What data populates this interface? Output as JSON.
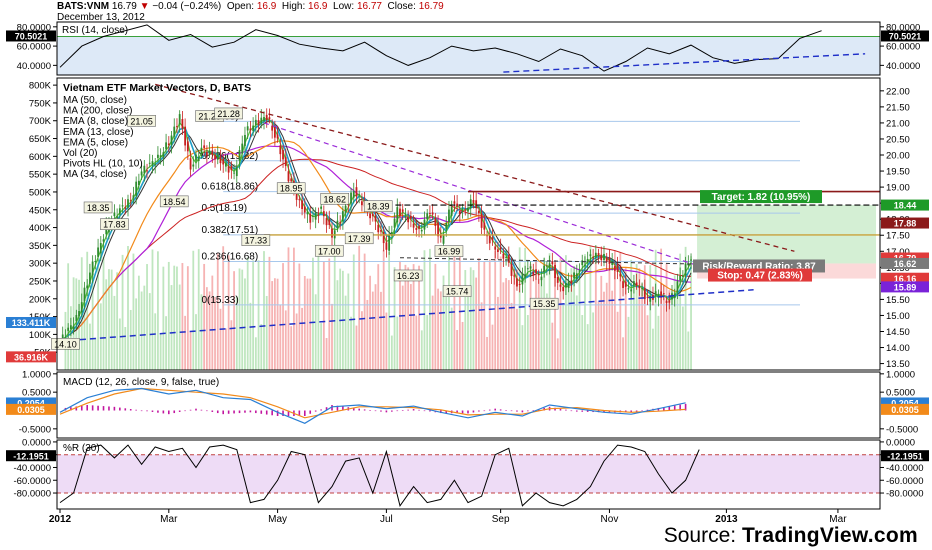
{
  "header": {
    "symbol": "BATS:VNM",
    "price": "16.79",
    "change_arrow": "▼",
    "change": "−0.04 (−0.24%)",
    "open_label": "Open:",
    "open": "16.9",
    "high_label": "High:",
    "high": "16.9",
    "low_label": "Low:",
    "low": "16.77",
    "close_label": "Close:",
    "close": "16.79",
    "date": "December 13, 2012"
  },
  "source": {
    "label": "Source:",
    "brand": "TradingView.com"
  },
  "colors": {
    "up": "#2e8b2e",
    "down": "#c81e1e",
    "vol_up": "#bfe6bf",
    "vol_down": "#f6b3b3",
    "ma50": "#f28a1a",
    "ma200": "#cc2222",
    "ema8": "#1e9ec8",
    "ema13": "#333333",
    "ema5": "#55c23a",
    "ma34": "#b020d8",
    "trend": "#1f2fc8",
    "resist": "#8b1a1a",
    "target": "#1e9a28",
    "stop": "#e03a3a",
    "rsi_fill": "#dde9f7",
    "wr_fill": "#eedcf6",
    "macd_line": "#2a7fd4",
    "macd_signal": "#f28a1a",
    "macd_hist": "#c2169f"
  },
  "chart_data": [
    {
      "type": "line",
      "name": "RSI panel",
      "legend": "RSI (14, close)",
      "ylim": [
        30,
        85
      ],
      "y_ticks": [
        "80.0000",
        "60.0000",
        "40.0000"
      ],
      "y_tick_values": [
        80,
        60,
        40
      ],
      "bands": [
        30,
        70
      ],
      "last_value": "70.5021",
      "x": [
        0,
        8,
        16,
        24,
        32,
        40,
        48,
        56,
        64,
        72,
        80,
        88,
        96,
        104,
        112,
        120,
        128,
        136,
        144,
        152,
        160,
        168,
        176,
        184,
        192,
        200,
        208,
        216,
        224,
        232,
        240,
        248,
        256,
        264,
        272,
        280
      ],
      "values": [
        38,
        60,
        70,
        76,
        82,
        66,
        72,
        59,
        64,
        77,
        71,
        62,
        58,
        55,
        64,
        50,
        40,
        48,
        60,
        55,
        58,
        52,
        44,
        57,
        50,
        34,
        44,
        58,
        52,
        61,
        48,
        42,
        46,
        47,
        68,
        76
      ],
      "trendline": {
        "x": [
          163,
          296
        ],
        "y": [
          33,
          52
        ]
      }
    },
    {
      "type": "candlestick",
      "name": "Price panel",
      "title": "Vietnam ETF Market Vectors, D, BATS",
      "legend": [
        "MA (50, close)",
        "MA (200, close)",
        "EMA (8, close)",
        "EMA (13, close)",
        "EMA (5, close)",
        "Vol (20)",
        "Pivots HL (10, 10)",
        "MA (34, close)"
      ],
      "x_ticks": [
        "2012",
        "Mar",
        "May",
        "Jul",
        "Sep",
        "Nov",
        "2013",
        "Mar"
      ],
      "x_tick_positions": [
        0,
        40,
        80,
        120,
        162,
        202,
        245,
        286
      ],
      "ylim": [
        13.3,
        22.4
      ],
      "y_ticks": [
        "22.00",
        "21.50",
        "21.00",
        "20.50",
        "20.00",
        "19.50",
        "19.00",
        "18.50",
        "18.00",
        "17.50",
        "17.00",
        "16.50",
        "16.00",
        "15.50",
        "15.00",
        "14.50",
        "14.00",
        "13.50"
      ],
      "y_tick_values": [
        22,
        21.5,
        21,
        20.5,
        20,
        19.5,
        19,
        18.5,
        18,
        17.5,
        17,
        16.5,
        16,
        15.5,
        15,
        14.5,
        14,
        13.5
      ],
      "volume_ylim": [
        0,
        820
      ],
      "volume_ticks": [
        "800K",
        "750K",
        "700K",
        "650K",
        "600K",
        "550K",
        "500K",
        "450K",
        "400K",
        "350K",
        "300K",
        "250K",
        "200K",
        "150K",
        "100K",
        "50K"
      ],
      "volume_tick_values": [
        800,
        750,
        700,
        650,
        600,
        550,
        500,
        450,
        400,
        350,
        300,
        250,
        200,
        150,
        100,
        50
      ],
      "volume_badges": [
        "133.411K",
        "36.916K"
      ],
      "volume_badge_values": [
        133.4,
        36.9
      ],
      "close_path": {
        "x": [
          0,
          6,
          12,
          18,
          22,
          26,
          30,
          36,
          40,
          44,
          48,
          52,
          58,
          64,
          68,
          72,
          76,
          80,
          84,
          88,
          92,
          96,
          100,
          104,
          108,
          112,
          116,
          120,
          124,
          128,
          132,
          136,
          140,
          144,
          148,
          152,
          156,
          160,
          164,
          168,
          172,
          176,
          180,
          184,
          188,
          192,
          196,
          200,
          204,
          208,
          212,
          216,
          220,
          224,
          228,
          232
        ],
        "y": [
          14.2,
          14.9,
          16.6,
          17.9,
          18.3,
          18.6,
          19.5,
          19.9,
          20.4,
          21.2,
          19.6,
          20.2,
          19.9,
          19.4,
          20.7,
          21.0,
          21.2,
          20.4,
          19.3,
          18.5,
          18.0,
          18.3,
          17.5,
          18.2,
          18.9,
          18.4,
          17.9,
          17.1,
          18.3,
          18.0,
          17.6,
          18.3,
          17.3,
          18.5,
          18.2,
          18.6,
          17.6,
          17.1,
          16.8,
          15.9,
          16.5,
          16.2,
          16.7,
          15.8,
          16.1,
          16.6,
          16.9,
          16.8,
          16.5,
          15.8,
          16.0,
          15.5,
          15.7,
          15.4,
          16.2,
          16.8
        ]
      },
      "pivot_labels": [
        {
          "text": "14.10",
          "x": 2,
          "y": 14.1
        },
        {
          "text": "18.35",
          "x": 14,
          "y": 18.35
        },
        {
          "text": "17.83",
          "x": 20,
          "y": 17.83
        },
        {
          "text": "21.05",
          "x": 30,
          "y": 21.05
        },
        {
          "text": "21.20",
          "x": 55,
          "y": 21.2
        },
        {
          "text": "21.28",
          "x": 62,
          "y": 21.28
        },
        {
          "text": "18.54",
          "x": 42,
          "y": 18.54
        },
        {
          "text": "18.95",
          "x": 85,
          "y": 18.95
        },
        {
          "text": "17.33",
          "x": 72,
          "y": 17.33
        },
        {
          "text": "18.62",
          "x": 101,
          "y": 18.62
        },
        {
          "text": "17.00",
          "x": 99,
          "y": 17.0
        },
        {
          "text": "17.39",
          "x": 110,
          "y": 17.39
        },
        {
          "text": "18.39",
          "x": 117,
          "y": 18.39
        },
        {
          "text": "16.99",
          "x": 143,
          "y": 16.99
        },
        {
          "text": "16.23",
          "x": 128,
          "y": 16.23
        },
        {
          "text": "15.74",
          "x": 146,
          "y": 15.74
        },
        {
          "text": "15.35",
          "x": 178,
          "y": 15.35
        }
      ],
      "fibonacci": [
        {
          "label": "1(21.05)",
          "value": 21.05
        },
        {
          "label": "0.786(19.82)",
          "value": 19.82
        },
        {
          "label": "0.618(18.86)",
          "value": 18.86
        },
        {
          "label": "0.5(18.19)",
          "value": 18.19
        },
        {
          "label": "0.382(17.51)",
          "value": 17.51
        },
        {
          "label": "0.236(16.68)",
          "value": 16.68
        },
        {
          "label": "0(15.33)",
          "value": 15.33
        }
      ],
      "support_trendline": {
        "x": [
          0,
          255
        ],
        "y": [
          14.2,
          15.8
        ]
      },
      "resistance_trendline": {
        "x": [
          35,
          270
        ],
        "y": [
          22.2,
          17.0
        ]
      },
      "target_label": "Target: 1.82 (10.95%)",
      "target_value": 18.44,
      "entry_value": 16.62,
      "stop_label": "Stop: 0.47 (2.83%)",
      "stop_value": 16.15,
      "risk_reward_label": "Risk/Reward Ratio: 3.87",
      "price_badges": [
        "18.44",
        "17.88",
        "16.79",
        "16.62",
        "16.16",
        "15.89"
      ],
      "price_badge_values": [
        18.44,
        17.88,
        16.79,
        16.62,
        16.16,
        15.89
      ]
    },
    {
      "type": "line",
      "name": "MACD panel",
      "legend": "MACD (12, 26, close, 9, false, true)",
      "ylim": [
        -0.75,
        1.05
      ],
      "y_ticks": [
        "1.0000",
        "0.5000",
        "-0.5000"
      ],
      "y_tick_values": [
        1.0,
        0.5,
        -0.5
      ],
      "series": [
        {
          "label": "MACD",
          "last": "0.2054",
          "x": [
            0,
            10,
            20,
            30,
            40,
            50,
            60,
            70,
            80,
            90,
            100,
            110,
            120,
            130,
            140,
            150,
            160,
            170,
            180,
            190,
            200,
            210,
            220,
            230
          ],
          "values": [
            -0.05,
            0.35,
            0.55,
            0.6,
            0.45,
            0.55,
            0.35,
            0.3,
            -0.05,
            -0.35,
            0.1,
            0.15,
            0.05,
            0.12,
            -0.05,
            -0.2,
            -0.05,
            -0.15,
            0.15,
            0.05,
            -0.05,
            -0.1,
            0.05,
            0.21
          ]
        },
        {
          "label": "Signal",
          "last": "0.0305",
          "x": [
            0,
            10,
            20,
            30,
            40,
            50,
            60,
            70,
            80,
            90,
            100,
            110,
            120,
            130,
            140,
            150,
            160,
            170,
            180,
            190,
            200,
            210,
            220,
            230
          ],
          "values": [
            -0.1,
            0.2,
            0.45,
            0.6,
            0.55,
            0.5,
            0.45,
            0.35,
            0.1,
            -0.2,
            -0.05,
            0.1,
            0.1,
            0.08,
            0.02,
            -0.12,
            -0.1,
            -0.1,
            0.05,
            0.08,
            0.0,
            -0.05,
            -0.02,
            0.03
          ]
        }
      ]
    },
    {
      "type": "line",
      "name": "Williams %R panel",
      "legend": "%R (30)",
      "ylim": [
        -105,
        3
      ],
      "y_ticks": [
        "0.0000",
        "-20.0000",
        "-40.0000",
        "-60.0000",
        "-80.0000"
      ],
      "y_tick_values": [
        0,
        -20,
        -40,
        -60,
        -80
      ],
      "bands": [
        -20,
        -80
      ],
      "last_value": "-12.1951",
      "x": [
        0,
        5,
        10,
        15,
        20,
        25,
        30,
        35,
        40,
        45,
        50,
        55,
        60,
        65,
        70,
        75,
        80,
        85,
        90,
        95,
        100,
        105,
        110,
        115,
        120,
        125,
        130,
        135,
        140,
        145,
        150,
        155,
        160,
        165,
        170,
        175,
        180,
        185,
        190,
        195,
        200,
        205,
        210,
        215,
        220,
        225,
        230,
        235
      ],
      "values": [
        -95,
        -80,
        -10,
        -5,
        -25,
        -5,
        -35,
        -8,
        -15,
        -10,
        -40,
        -8,
        -5,
        -12,
        -95,
        -90,
        -60,
        -15,
        -20,
        -95,
        -70,
        -30,
        -25,
        -80,
        -15,
        -100,
        -70,
        -95,
        -90,
        -60,
        -95,
        -85,
        -20,
        -10,
        -100,
        -80,
        -95,
        -100,
        -90,
        -70,
        -30,
        -5,
        -8,
        -15,
        -50,
        -80,
        -60,
        -12
      ]
    }
  ]
}
